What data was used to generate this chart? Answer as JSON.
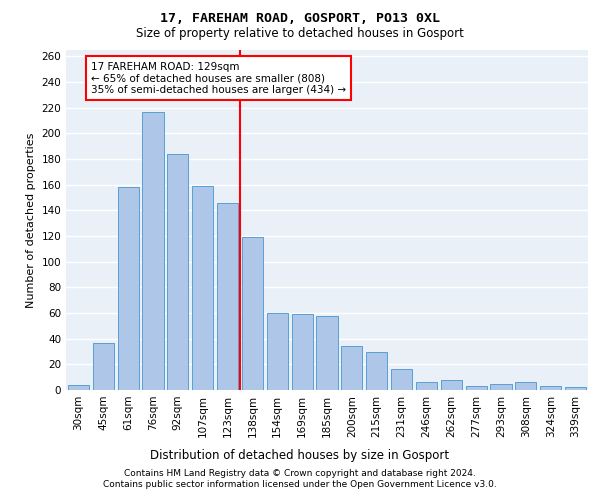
{
  "title1": "17, FAREHAM ROAD, GOSPORT, PO13 0XL",
  "title2": "Size of property relative to detached houses in Gosport",
  "xlabel": "Distribution of detached houses by size in Gosport",
  "ylabel": "Number of detached properties",
  "footer1": "Contains HM Land Registry data © Crown copyright and database right 2024.",
  "footer2": "Contains public sector information licensed under the Open Government Licence v3.0.",
  "categories": [
    "30sqm",
    "45sqm",
    "61sqm",
    "76sqm",
    "92sqm",
    "107sqm",
    "123sqm",
    "138sqm",
    "154sqm",
    "169sqm",
    "185sqm",
    "200sqm",
    "215sqm",
    "231sqm",
    "246sqm",
    "262sqm",
    "277sqm",
    "293sqm",
    "308sqm",
    "324sqm",
    "339sqm"
  ],
  "values": [
    4,
    37,
    158,
    217,
    184,
    159,
    146,
    119,
    60,
    59,
    58,
    34,
    30,
    16,
    6,
    8,
    3,
    5,
    6,
    3,
    2
  ],
  "bar_color": "#aec6e8",
  "bar_edge_color": "#5a9fd4",
  "bar_width": 0.85,
  "vline_x": 6.5,
  "vline_color": "red",
  "annotation_text": "17 FAREHAM ROAD: 129sqm\n← 65% of detached houses are smaller (808)\n35% of semi-detached houses are larger (434) →",
  "annotation_box_color": "white",
  "annotation_box_edge_color": "red",
  "ylim": [
    0,
    265
  ],
  "yticks": [
    0,
    20,
    40,
    60,
    80,
    100,
    120,
    140,
    160,
    180,
    200,
    220,
    240,
    260
  ],
  "bg_color": "#eaf0f8",
  "grid_color": "white",
  "title1_fontsize": 9.5,
  "title2_fontsize": 8.5,
  "xlabel_fontsize": 8.5,
  "ylabel_fontsize": 8,
  "tick_fontsize": 7.5,
  "footer_fontsize": 6.5,
  "annotation_fontsize": 7.5
}
